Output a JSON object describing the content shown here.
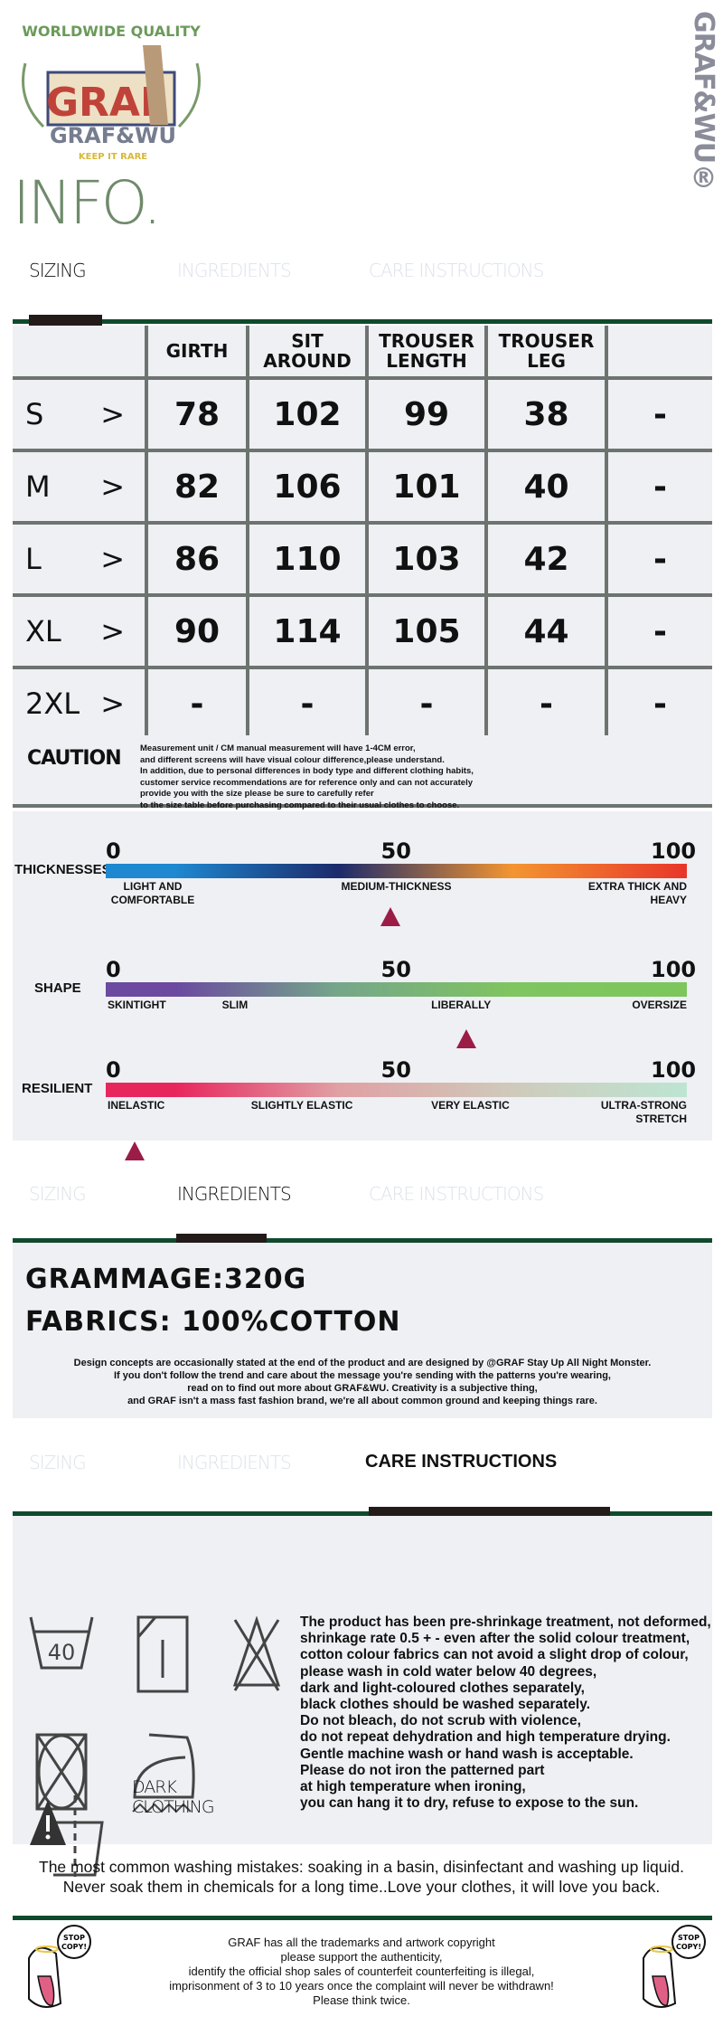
{
  "brand": {
    "logo_top": "WORLDWIDE QUALITY",
    "logo_main": "GRAF",
    "logo_sub": "GRAF&WU",
    "logo_tag": "KEEP IT RARE",
    "vertical": "GRAF&WU®"
  },
  "page_title": "INFO.",
  "tabs": [
    "SIZING",
    "INGREDIENTS",
    "CARE INSTRUCTIONS"
  ],
  "sizing": {
    "headers": [
      "",
      "GIRTH",
      "SIT AROUND",
      "TROUSER LENGTH",
      "TROUSER LEG",
      ""
    ],
    "rows": [
      {
        "size": "S",
        "arrow": ">",
        "cells": [
          "78",
          "102",
          "99",
          "38",
          "-"
        ]
      },
      {
        "size": "M",
        "arrow": ">",
        "cells": [
          "82",
          "106",
          "101",
          "40",
          "-"
        ]
      },
      {
        "size": "L",
        "arrow": ">",
        "cells": [
          "86",
          "110",
          "103",
          "42",
          "-"
        ]
      },
      {
        "size": "XL",
        "arrow": ">",
        "cells": [
          "90",
          "114",
          "105",
          "44",
          "-"
        ]
      },
      {
        "size": "2XL",
        "arrow": ">",
        "cells": [
          "-",
          "-",
          "-",
          "-",
          "-"
        ]
      }
    ],
    "caution_title": "CAUTION",
    "caution_lines": [
      "Measurement unit / CM manual measurement will have 1-4CM error,",
      "and different screens will have visual colour difference,please understand.",
      "In addition, due to personal differences in body type and different clothing habits,",
      "customer service recommendations are for reference only and can not accurately",
      "provide you with the size please be sure to carefully refer",
      "to the size table before purchasing compared to their usual clothes to choose."
    ]
  },
  "scales": [
    {
      "name": "THICKNESSES",
      "ticks": [
        "0",
        "50",
        "100"
      ],
      "labels": [
        "LIGHT AND COMFORTABLE",
        "MEDIUM-THICKNESS",
        "EXTRA THICK AND HEAVY"
      ],
      "value": 49,
      "gradient": [
        "#1e88d0",
        "#1b2a6b",
        "#f39530",
        "#e8352a"
      ]
    },
    {
      "name": "SHAPE",
      "ticks": [
        "0",
        "50",
        "100"
      ],
      "labels": [
        "SKINTIGHT",
        "SLIM",
        "LIBERALLY",
        "OVERSIZE"
      ],
      "value": 62,
      "gradient": [
        "#6b4aa0",
        "#76a68a",
        "#7fc560",
        "#7cc65c"
      ]
    },
    {
      "name": "RESILIENT",
      "ticks": [
        "0",
        "50",
        "100"
      ],
      "labels": [
        "INELASTIC",
        "SLIGHTLY ELASTIC",
        "VERY ELASTIC",
        "ULTRA-STRONG STRETCH"
      ],
      "value": 5,
      "gradient": [
        "#e8265e",
        "#e0a0a4",
        "#cfcabb",
        "#bde5d2"
      ]
    }
  ],
  "ingredients": {
    "grammage_label": "GRAMMAGE:",
    "grammage": "320G",
    "fabrics_label": "FABRICS:",
    "fabrics": "100%COTTON",
    "design_lines": [
      "Design concepts are occasionally stated at the end of the product and are designed by @GRAF Stay Up All Night Monster.",
      "If you don't follow the trend and care about the message you're sending with the patterns you're wearing,",
      "read on to find out more about GRAF&WU. Creativity is a subjective thing,",
      "and GRAF isn't a mass fast fashion brand, we're all about common ground and keeping things rare."
    ]
  },
  "care": {
    "wash_temp": "40",
    "dark_label": [
      "DARK",
      "CLOTHING"
    ],
    "lines": [
      "The product has been pre-shrinkage treatment, not deformed,",
      "shrinkage rate 0.5 + - even after the solid colour treatment,",
      "cotton colour fabrics can not avoid a slight drop of colour,",
      "please wash in cold water below 40 degrees,",
      "dark and light-coloured clothes separately,",
      "black clothes should be washed separately.",
      "Do not bleach, do not scrub with violence,",
      "do not repeat dehydration and high temperature drying.",
      "Gentle machine wash or hand wash is acceptable.",
      "Please do not iron the patterned part",
      "at high temperature when ironing,",
      "you can hang it to dry, refuse to expose to the sun."
    ],
    "mistakes": [
      "The most common washing mistakes: soaking in a basin, disinfectant and washing up liquid.",
      "Never soak them in chemicals for a long time..Love your clothes, it will love you back."
    ]
  },
  "footer": {
    "bubble": "STOP COPY!",
    "lines": [
      "GRAF has all the trademarks and artwork copyright",
      "please support the authenticity,",
      "identify the official shop sales of counterfeit counterfeiting is illegal,",
      "imprisonment of 3 to 10 years once the complaint will never be withdrawn!",
      "Please think twice."
    ]
  },
  "colors": {
    "green": "#0f4a2c",
    "panel": "#eef0f4",
    "marker": "#9b1d47",
    "title": "#6f8a6b"
  }
}
